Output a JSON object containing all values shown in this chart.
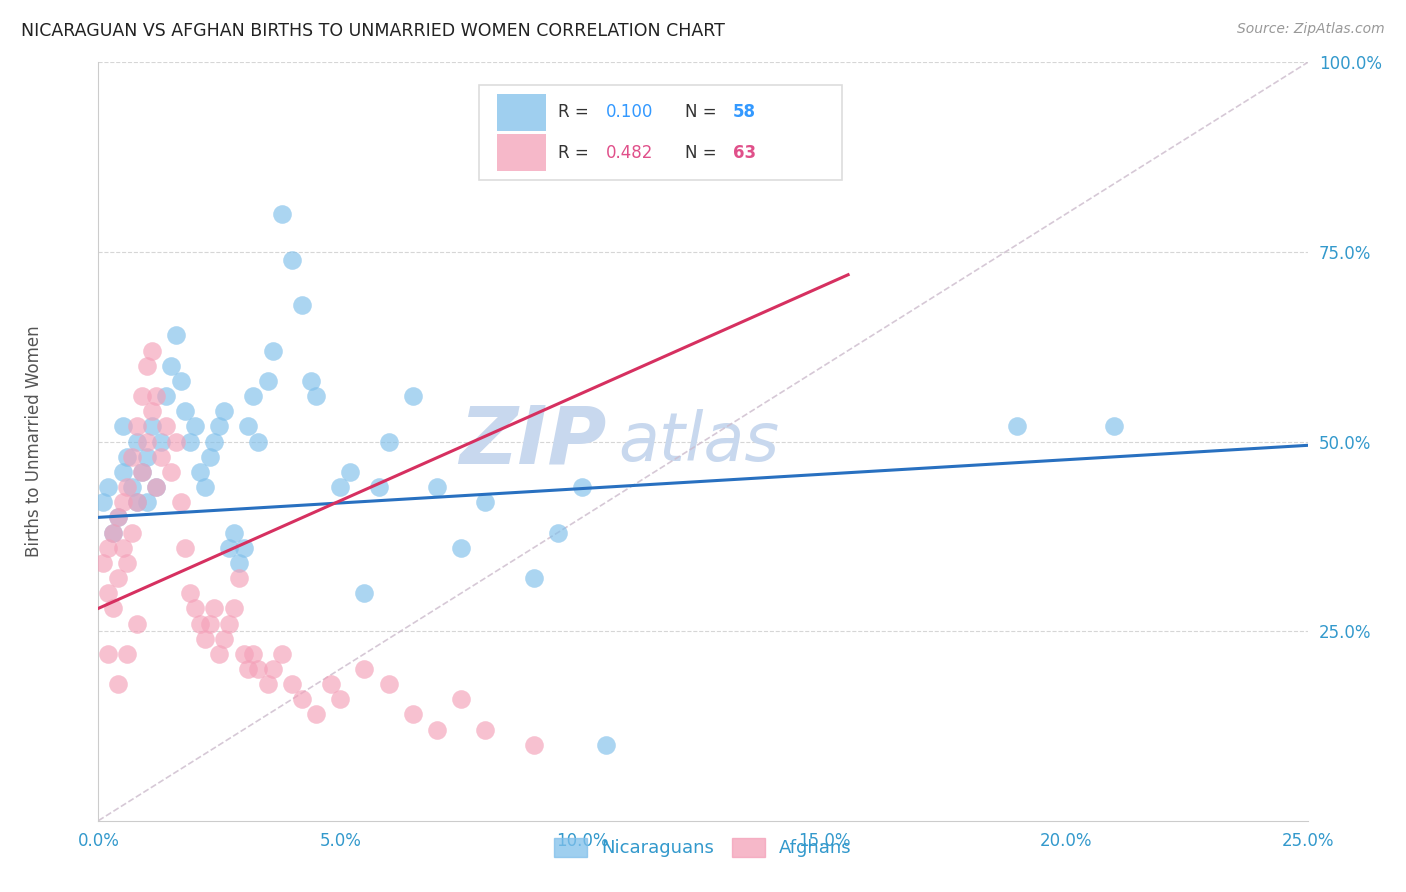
{
  "title": "NICARAGUAN VS AFGHAN BIRTHS TO UNMARRIED WOMEN CORRELATION CHART",
  "source": "Source: ZipAtlas.com",
  "ylabel_label": "Births to Unmarried Women",
  "xmin": 0.0,
  "xmax": 0.25,
  "ymin": 0.0,
  "ymax": 1.0,
  "legend_blue_r": "R = 0.100",
  "legend_blue_n": "N = 58",
  "legend_pink_r": "R = 0.482",
  "legend_pink_n": "N = 63",
  "legend_blue_label": "Nicaraguans",
  "legend_pink_label": "Afghans",
  "blue_color": "#7fbfea",
  "pink_color": "#f4a0b8",
  "trend_blue_color": "#2870c0",
  "trend_pink_color": "#d63060",
  "r_blue_color": "#3399ff",
  "n_blue_color": "#3399ff",
  "r_pink_color": "#e0508a",
  "n_pink_color": "#e0508a",
  "watermark_color": "#c8d8ee",
  "background_color": "#ffffff",
  "grid_color": "#cccccc",
  "title_color": "#222222",
  "axis_label_color": "#555555",
  "tick_label_color": "#3399cc",
  "blue_scatter": [
    [
      0.001,
      0.42
    ],
    [
      0.002,
      0.44
    ],
    [
      0.003,
      0.38
    ],
    [
      0.004,
      0.4
    ],
    [
      0.005,
      0.46
    ],
    [
      0.005,
      0.52
    ],
    [
      0.006,
      0.48
    ],
    [
      0.007,
      0.44
    ],
    [
      0.008,
      0.42
    ],
    [
      0.008,
      0.5
    ],
    [
      0.009,
      0.46
    ],
    [
      0.01,
      0.42
    ],
    [
      0.01,
      0.48
    ],
    [
      0.011,
      0.52
    ],
    [
      0.012,
      0.44
    ],
    [
      0.013,
      0.5
    ],
    [
      0.014,
      0.56
    ],
    [
      0.015,
      0.6
    ],
    [
      0.016,
      0.64
    ],
    [
      0.017,
      0.58
    ],
    [
      0.018,
      0.54
    ],
    [
      0.019,
      0.5
    ],
    [
      0.02,
      0.52
    ],
    [
      0.021,
      0.46
    ],
    [
      0.022,
      0.44
    ],
    [
      0.023,
      0.48
    ],
    [
      0.024,
      0.5
    ],
    [
      0.025,
      0.52
    ],
    [
      0.026,
      0.54
    ],
    [
      0.027,
      0.36
    ],
    [
      0.028,
      0.38
    ],
    [
      0.029,
      0.34
    ],
    [
      0.03,
      0.36
    ],
    [
      0.031,
      0.52
    ],
    [
      0.032,
      0.56
    ],
    [
      0.033,
      0.5
    ],
    [
      0.035,
      0.58
    ],
    [
      0.036,
      0.62
    ],
    [
      0.038,
      0.8
    ],
    [
      0.04,
      0.74
    ],
    [
      0.042,
      0.68
    ],
    [
      0.044,
      0.58
    ],
    [
      0.045,
      0.56
    ],
    [
      0.05,
      0.44
    ],
    [
      0.052,
      0.46
    ],
    [
      0.055,
      0.3
    ],
    [
      0.058,
      0.44
    ],
    [
      0.06,
      0.5
    ],
    [
      0.065,
      0.56
    ],
    [
      0.07,
      0.44
    ],
    [
      0.075,
      0.36
    ],
    [
      0.08,
      0.42
    ],
    [
      0.09,
      0.32
    ],
    [
      0.095,
      0.38
    ],
    [
      0.1,
      0.44
    ],
    [
      0.105,
      0.1
    ],
    [
      0.19,
      0.52
    ],
    [
      0.21,
      0.52
    ]
  ],
  "pink_scatter": [
    [
      0.001,
      0.34
    ],
    [
      0.002,
      0.3
    ],
    [
      0.002,
      0.36
    ],
    [
      0.003,
      0.28
    ],
    [
      0.003,
      0.38
    ],
    [
      0.004,
      0.32
    ],
    [
      0.004,
      0.4
    ],
    [
      0.005,
      0.36
    ],
    [
      0.005,
      0.42
    ],
    [
      0.006,
      0.34
    ],
    [
      0.006,
      0.44
    ],
    [
      0.007,
      0.38
    ],
    [
      0.007,
      0.48
    ],
    [
      0.008,
      0.42
    ],
    [
      0.008,
      0.52
    ],
    [
      0.009,
      0.46
    ],
    [
      0.009,
      0.56
    ],
    [
      0.01,
      0.5
    ],
    [
      0.01,
      0.6
    ],
    [
      0.011,
      0.54
    ],
    [
      0.011,
      0.62
    ],
    [
      0.012,
      0.56
    ],
    [
      0.012,
      0.44
    ],
    [
      0.013,
      0.48
    ],
    [
      0.014,
      0.52
    ],
    [
      0.015,
      0.46
    ],
    [
      0.016,
      0.5
    ],
    [
      0.017,
      0.42
    ],
    [
      0.018,
      0.36
    ],
    [
      0.019,
      0.3
    ],
    [
      0.02,
      0.28
    ],
    [
      0.021,
      0.26
    ],
    [
      0.022,
      0.24
    ],
    [
      0.023,
      0.26
    ],
    [
      0.024,
      0.28
    ],
    [
      0.025,
      0.22
    ],
    [
      0.026,
      0.24
    ],
    [
      0.027,
      0.26
    ],
    [
      0.028,
      0.28
    ],
    [
      0.029,
      0.32
    ],
    [
      0.03,
      0.22
    ],
    [
      0.031,
      0.2
    ],
    [
      0.032,
      0.22
    ],
    [
      0.033,
      0.2
    ],
    [
      0.035,
      0.18
    ],
    [
      0.036,
      0.2
    ],
    [
      0.038,
      0.22
    ],
    [
      0.04,
      0.18
    ],
    [
      0.042,
      0.16
    ],
    [
      0.045,
      0.14
    ],
    [
      0.048,
      0.18
    ],
    [
      0.05,
      0.16
    ],
    [
      0.055,
      0.2
    ],
    [
      0.06,
      0.18
    ],
    [
      0.065,
      0.14
    ],
    [
      0.07,
      0.12
    ],
    [
      0.075,
      0.16
    ],
    [
      0.08,
      0.12
    ],
    [
      0.09,
      0.1
    ],
    [
      0.002,
      0.22
    ],
    [
      0.004,
      0.18
    ],
    [
      0.006,
      0.22
    ],
    [
      0.008,
      0.26
    ]
  ],
  "blue_trend_x": [
    0.0,
    0.25
  ],
  "blue_trend_y": [
    0.4,
    0.495
  ],
  "pink_trend_x": [
    0.0,
    0.155
  ],
  "pink_trend_y": [
    0.28,
    0.72
  ]
}
